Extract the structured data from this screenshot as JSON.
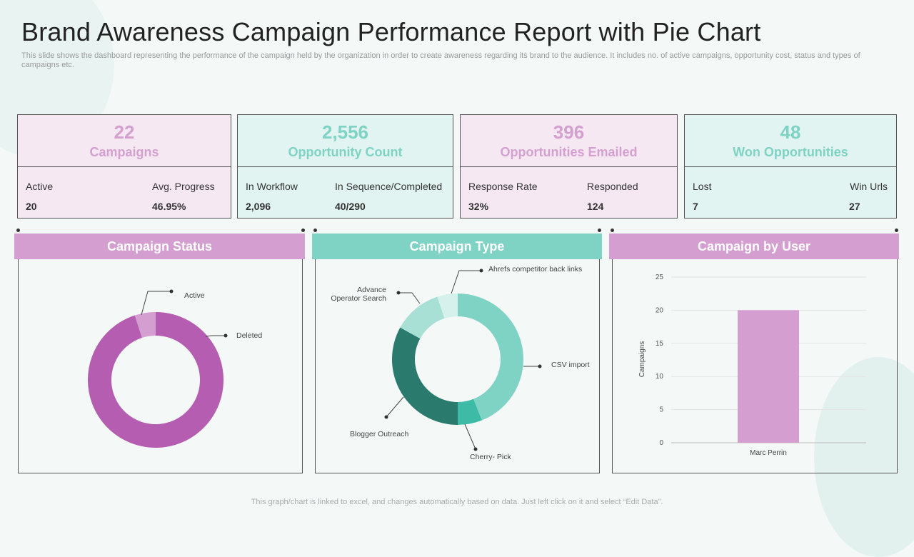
{
  "title": "Brand Awareness Campaign Performance Report with Pie Chart",
  "subtitle": "This slide shows the dashboard representing the performance of the campaign held by the organization in order to create awareness regarding its brand to the audience. It includes no. of active campaigns, opportunity cost, status and types of campaigns etc.",
  "cards": [
    {
      "value": "22",
      "label": "Campaigns",
      "left_label": "Active",
      "left_value": "20",
      "right_label": "Avg. Progress",
      "right_value": "46.95%"
    },
    {
      "value": "2,556",
      "label": "Opportunity Count",
      "left_label": "In Workflow",
      "left_value": "2,096",
      "right_label": "In Sequence/Completed",
      "right_value": "40/290"
    },
    {
      "value": "396",
      "label": "Opportunities Emailed",
      "left_label": "Response Rate",
      "left_value": "32%",
      "right_label": "Responded",
      "right_value": "124"
    },
    {
      "value": "48",
      "label": "Won Opportunities",
      "left_label": "Lost",
      "left_value": "7",
      "right_label": "Win Urls",
      "right_value": "27"
    }
  ],
  "panels": [
    "Campaign Status",
    "Campaign Type",
    "Campaign by User"
  ],
  "colors": {
    "pink": "#d49fd0",
    "teal": "#7fd3c5",
    "magenta": "#b55db0"
  },
  "chart_data": [
    {
      "type": "pie",
      "title": "Campaign Status",
      "donut": true,
      "labels": [
        "Active",
        "Deleted"
      ],
      "values": [
        5,
        95
      ],
      "colors": [
        "#d49fd0",
        "#b55db0"
      ]
    },
    {
      "type": "pie",
      "title": "Campaign Type",
      "donut": true,
      "labels": [
        "CSV import",
        "Cherry- Pick",
        "Blogger Outreach",
        "Advance Operator Search",
        "Ahrefs competitor back links"
      ],
      "values": [
        44,
        6,
        33,
        12,
        5
      ],
      "colors": [
        "#7fd3c5",
        "#3dbba6",
        "#2a7a6e",
        "#a8e0d6",
        "#d6f1ec"
      ]
    },
    {
      "type": "bar",
      "title": "Campaign by User",
      "categories": [
        "Marc Perrin"
      ],
      "values": [
        20
      ],
      "ylabel": "Campaigns",
      "ylim": [
        0,
        25
      ],
      "yticks": [
        "0",
        "5",
        "10",
        "15",
        "20",
        "25"
      ],
      "grid": true,
      "color": "#d49fd0"
    }
  ],
  "footer": "This graph/chart is linked to excel, and changes automatically based on data. Just left click on it and select “Edit Data”."
}
